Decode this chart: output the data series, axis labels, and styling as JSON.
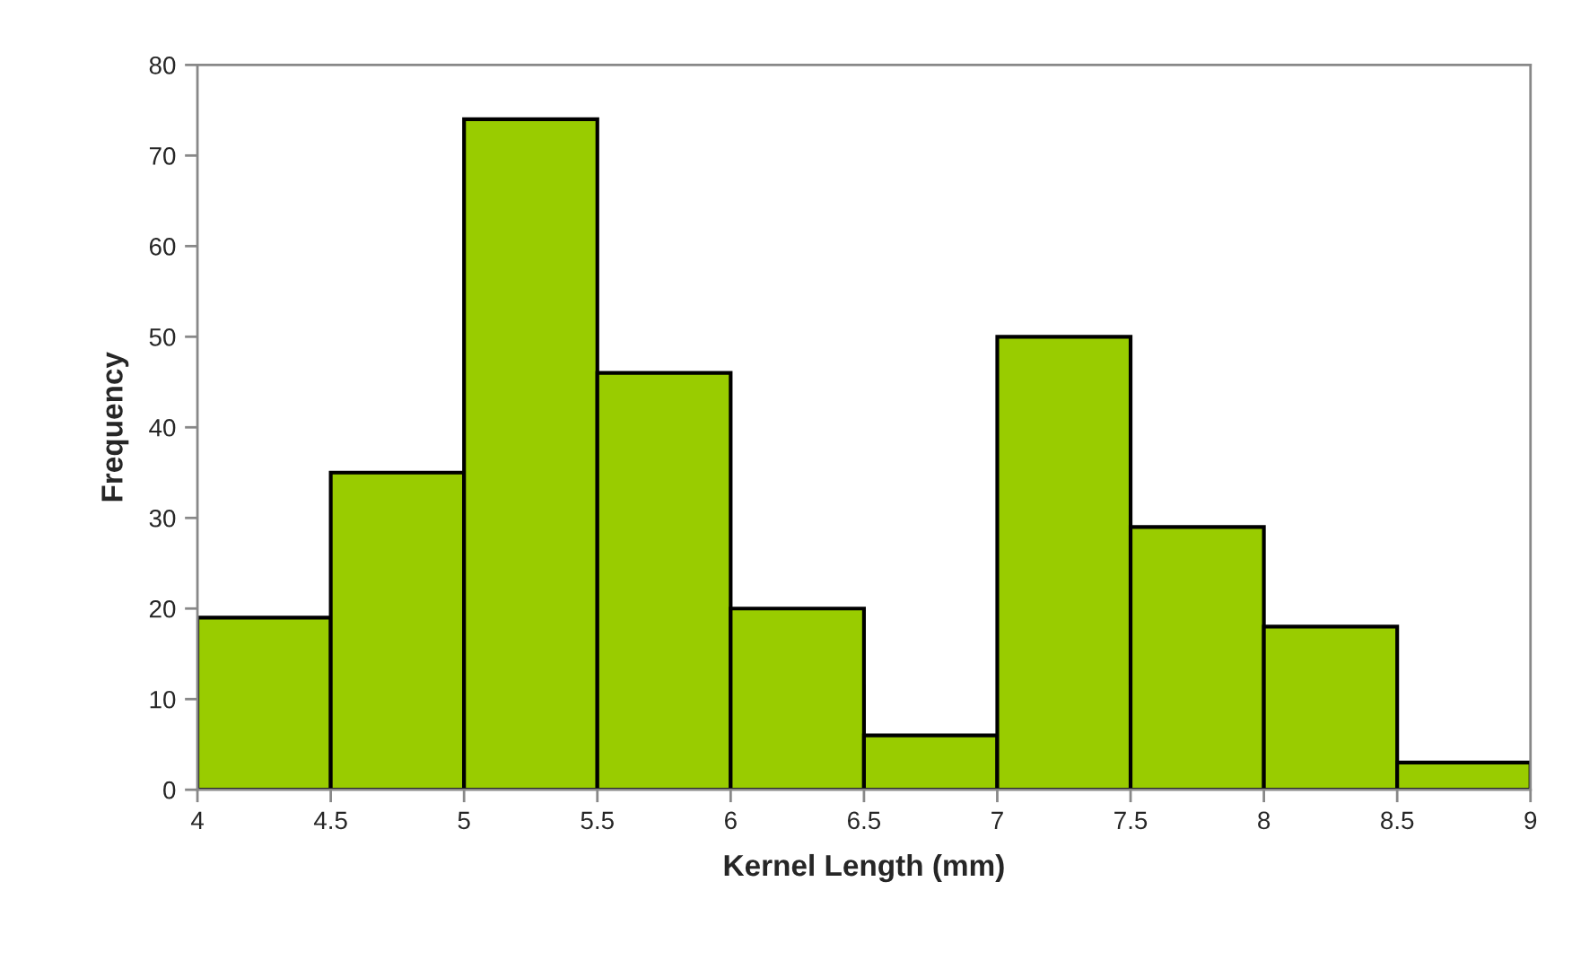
{
  "chart_data": {
    "type": "histogram",
    "xlabel": "Kernel Length (mm)",
    "ylabel": "Frequency",
    "bins": [
      4,
      4.5,
      5,
      5.5,
      6,
      6.5,
      7,
      7.5,
      8,
      8.5,
      9
    ],
    "values": [
      19,
      35,
      74,
      46,
      20,
      6,
      50,
      29,
      18,
      3
    ],
    "color": "#99cc00",
    "xlim": [
      4,
      9
    ],
    "xticks": [
      4,
      4.5,
      5,
      5.5,
      6,
      6.5,
      7,
      7.5,
      8,
      8.5,
      9
    ],
    "ylim": [
      0,
      80
    ],
    "yticks": [
      0,
      10,
      20,
      30,
      40,
      50,
      60,
      70,
      80
    ]
  }
}
